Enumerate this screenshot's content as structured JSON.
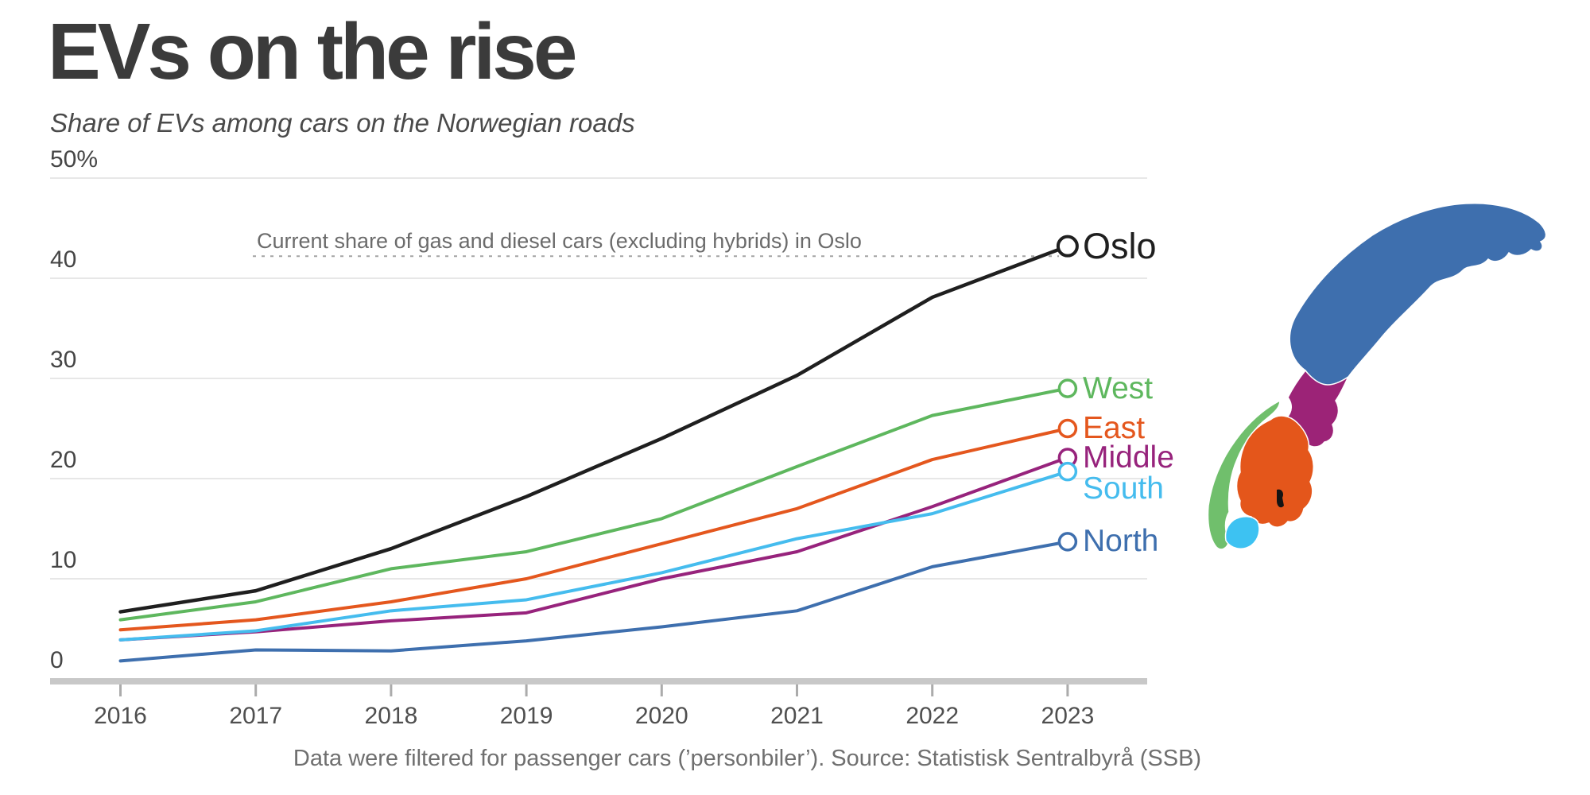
{
  "header": {
    "title": "EVs on the rise",
    "subtitle": "Share of EVs among cars on the Norwegian roads"
  },
  "annotation": {
    "text": "Current share of gas and diesel cars (excluding hybrids) in Oslo",
    "value": 42.2
  },
  "footer": {
    "note": "Data were filtered for passenger cars (’personbiler’). Source: Statistisk Sentralbyrå (SSB)"
  },
  "chart_data": {
    "type": "line",
    "title": "EVs on the rise",
    "subtitle": "Share of EVs among cars on the Norwegian roads",
    "x": [
      2016,
      2017,
      2018,
      2019,
      2020,
      2021,
      2022,
      2023
    ],
    "x_tick_labels": [
      "2016",
      "2017",
      "2018",
      "2019",
      "2020",
      "2021",
      "2022",
      "2023"
    ],
    "y_ticks": [
      {
        "value": 0,
        "label": "0"
      },
      {
        "value": 10,
        "label": "10"
      },
      {
        "value": 20,
        "label": "20"
      },
      {
        "value": 30,
        "label": "30"
      },
      {
        "value": 40,
        "label": "40"
      },
      {
        "value": 50,
        "label": "50%"
      }
    ],
    "ylim": [
      0,
      50
    ],
    "grid": "horizontal",
    "legend_position": "end-of-line-labels",
    "series": [
      {
        "name": "Oslo",
        "color": "#1f1f1f",
        "values": [
          6.7,
          8.8,
          13.0,
          18.2,
          24.0,
          30.3,
          38.1,
          43.2
        ]
      },
      {
        "name": "West",
        "color": "#5eb75e",
        "values": [
          5.9,
          7.7,
          11.0,
          12.7,
          16.0,
          21.2,
          26.3,
          29.0
        ]
      },
      {
        "name": "East",
        "color": "#e4571e",
        "values": [
          4.9,
          5.9,
          7.7,
          10.0,
          13.5,
          17.0,
          21.9,
          25.0
        ]
      },
      {
        "name": "Middle",
        "color": "#97237c",
        "values": [
          3.9,
          4.7,
          5.8,
          6.6,
          10.0,
          12.7,
          17.2,
          22.1
        ]
      },
      {
        "name": "South",
        "color": "#45bcee",
        "values": [
          3.9,
          4.8,
          6.8,
          7.9,
          10.6,
          14.0,
          16.5,
          20.7
        ]
      },
      {
        "name": "North",
        "color": "#3e6fae",
        "values": [
          1.8,
          2.9,
          2.8,
          3.8,
          5.2,
          6.8,
          11.2,
          13.7
        ]
      }
    ],
    "reference_line": {
      "value": 42.2,
      "style": "dashed",
      "label": "Current share of gas and diesel cars (excluding hybrids) in Oslo"
    }
  },
  "map": {
    "country": "Norway",
    "regions": [
      {
        "name": "North",
        "color": "#3e6fae"
      },
      {
        "name": "Middle",
        "color": "#9c2377"
      },
      {
        "name": "West",
        "color": "#70bf6c"
      },
      {
        "name": "East",
        "color": "#e4561b"
      },
      {
        "name": "South",
        "color": "#3dc2f2"
      }
    ],
    "marker": {
      "name": "Oslo",
      "color": "#141414"
    }
  }
}
